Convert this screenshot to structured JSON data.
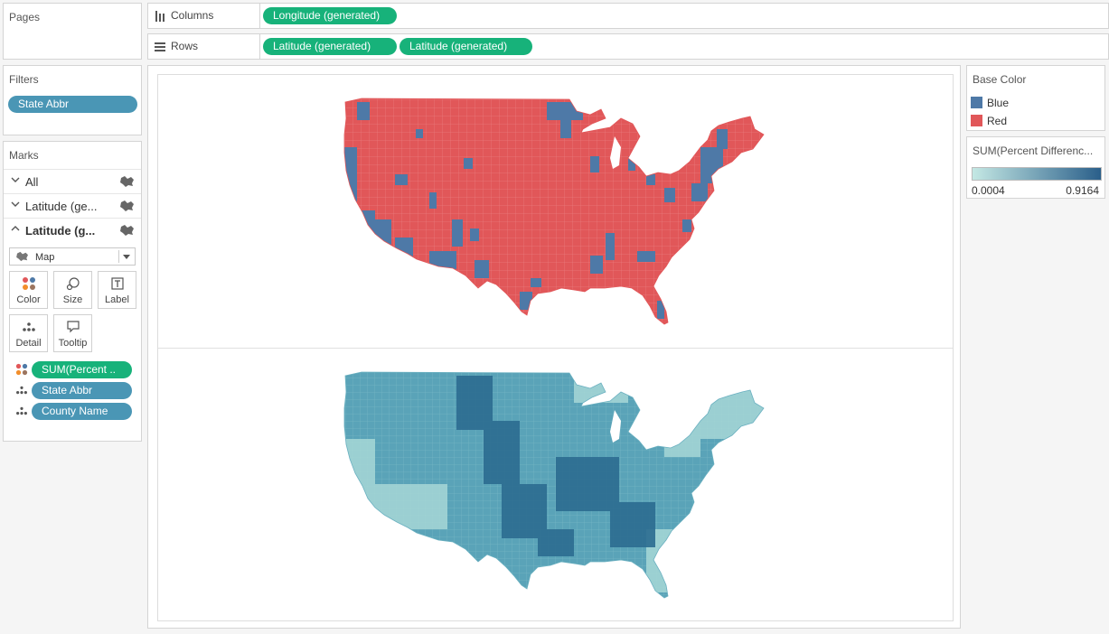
{
  "pages": {
    "title": "Pages"
  },
  "filters": {
    "title": "Filters",
    "pills": [
      "State Abbr"
    ]
  },
  "marks": {
    "title": "Marks",
    "layers": [
      {
        "label": "All",
        "expanded": false,
        "bold": false
      },
      {
        "label": "Latitude (ge...",
        "expanded": false,
        "bold": false
      },
      {
        "label": "Latitude (g...",
        "expanded": true,
        "bold": true
      }
    ],
    "mark_type": "Map",
    "buttons": [
      "Color",
      "Size",
      "Label",
      "Detail",
      "Tooltip"
    ],
    "fields": [
      {
        "label": "SUM(Percent ..",
        "kind": "color",
        "style": "green"
      },
      {
        "label": "State Abbr",
        "kind": "detail",
        "style": "blue"
      },
      {
        "label": "County Name",
        "kind": "detail",
        "style": "blue"
      }
    ]
  },
  "columns_shelf": {
    "label": "Columns",
    "pills": [
      "Longitude (generated)"
    ]
  },
  "rows_shelf": {
    "label": "Rows",
    "pills": [
      "Latitude (generated)",
      "Latitude (generated)"
    ]
  },
  "legend_base_color": {
    "title": "Base Color",
    "items": [
      {
        "label": "Blue",
        "color": "#4e79a7"
      },
      {
        "label": "Red",
        "color": "#e15759"
      }
    ]
  },
  "legend_percent": {
    "title": "SUM(Percent Differenc...",
    "min_label": "0.0004",
    "max_label": "0.9164",
    "gradient_start": "#c4e8e4",
    "gradient_end": "#2a5f8a"
  },
  "colors": {
    "green_pill": "#17b27a",
    "blue_pill": "#4a96b5",
    "map_red": "#e15759",
    "map_blue": "#4e79a7",
    "map_teal_light": "#a7d8d6",
    "map_teal_dark": "#2c6c91"
  }
}
